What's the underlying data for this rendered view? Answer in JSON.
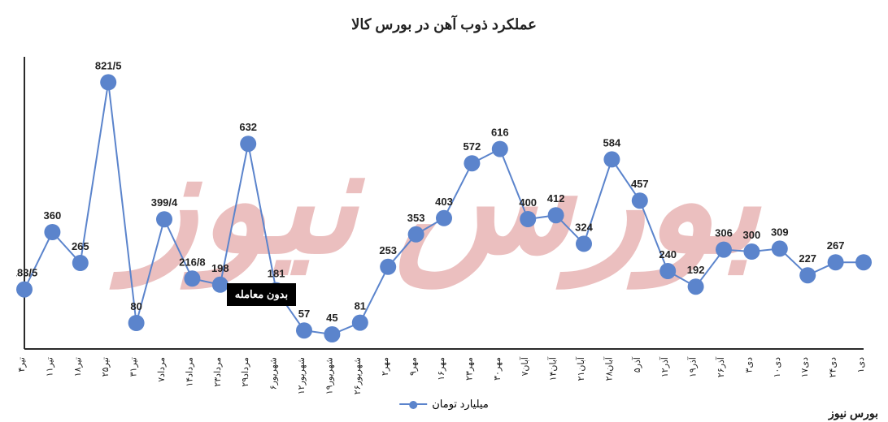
{
  "title": "عملکرد ذوب آهن در بورس کالا",
  "title_fontsize": 18,
  "title_color": "#222222",
  "footer_credit": "بورس نیوز",
  "footer_credit_color": "#1a1a1a",
  "watermark_text": "بورس نیوز",
  "watermark_color": "#e8b5b5",
  "watermark_fontsize": 180,
  "chart": {
    "type": "line",
    "background_color": "#ffffff",
    "axis_color": "#2a2a2a",
    "axis_width": 2,
    "line_color": "#5b84cc",
    "line_width": 2,
    "marker_color": "#5b84cc",
    "marker_radius": 10,
    "marker_type": "circle",
    "label_color": "#222222",
    "label_fontsize": 13,
    "label_fontweight": "bold",
    "xaxis_label_fontsize": 11,
    "xaxis_label_rotation": -90,
    "xaxis_label_color": "#222222",
    "ymax": 900,
    "ymin": 0,
    "categories": [
      "۴تیر",
      "۱۱تیر",
      "۱۸تیر",
      "۲۵تیر",
      "۳۱تیر",
      "۷مرداد",
      "۱۴مرداد",
      "۲۳مرداد",
      "۲۹مرداد",
      "۶شهریور",
      "۱۲شهریور",
      "۱۹شهریور",
      "۲۶شهریور",
      "۲مهر",
      "۹مهر",
      "۱۶مهر",
      "۲۳مهر",
      "۳۰مهر",
      "۷آبان",
      "۱۴آبان",
      "۲۱آبان",
      "۲۸آبان",
      "۵آذر",
      "۱۲آذر",
      "۱۹آذر",
      "۲۶آذر",
      "۳دی",
      "۱۰دی",
      "۱۷دی",
      "۲۴دی",
      "۱دی"
    ],
    "values": [
      183.5,
      360,
      265,
      821.5,
      80,
      399.4,
      216.8,
      198,
      632,
      181,
      57,
      45,
      81,
      253,
      353,
      403,
      572,
      616,
      400,
      412,
      324,
      584,
      457,
      240,
      192,
      306,
      300,
      309,
      227,
      267,
      267
    ],
    "value_labels": [
      "183/5",
      "360",
      "265",
      "821/5",
      "80",
      "399/4",
      "216/8",
      "198",
      "632",
      "181",
      "57",
      "45",
      "81",
      "253",
      "353",
      "403",
      "572",
      "616",
      "400",
      "412",
      "324",
      "584",
      "457",
      "240",
      "192",
      "306",
      "300",
      "309",
      "227",
      "267",
      ""
    ],
    "last_connects_to": 29,
    "legend": {
      "label": "میلیارد تومان",
      "color": "#5b84cc"
    },
    "annotation": {
      "text": "بدون معامله",
      "anchor_index": 7
    }
  }
}
